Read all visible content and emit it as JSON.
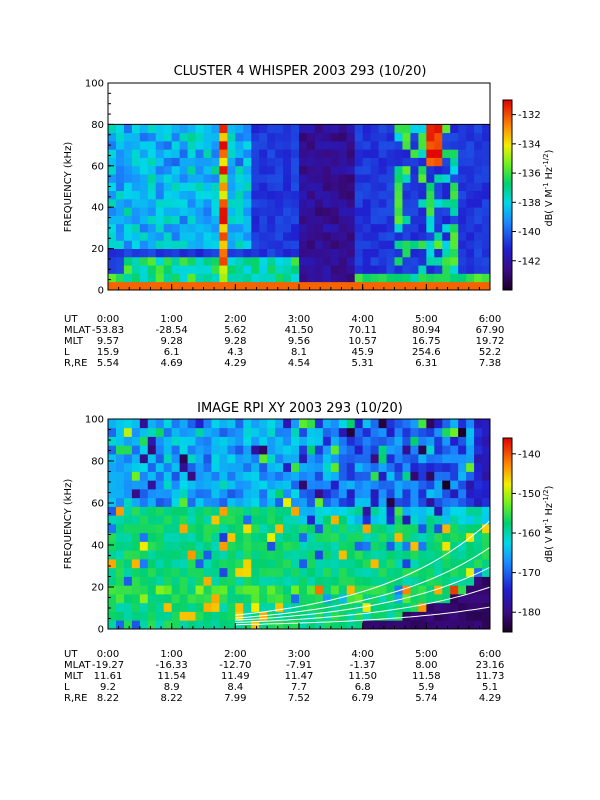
{
  "chart_data": [
    {
      "type": "heatmap",
      "title": "CLUSTER 4 WHISPER 2003 293 (10/20)",
      "ylabel": "FREQUENCY (kHz)",
      "ylim": [
        0,
        100
      ],
      "y_ticks": [
        "0",
        "20",
        "40",
        "60",
        "80",
        "100"
      ],
      "data_upper_limit_khz": 80,
      "x_ticks": [
        "0:00",
        "1:00",
        "2:00",
        "3:00",
        "4:00",
        "5:00",
        "6:00"
      ],
      "colorbar": {
        "label": "dB( V M^-1 Hz^-1/2)",
        "range": [
          -144,
          -131
        ],
        "ticks": [
          "-132",
          "-134",
          "-136",
          "-138",
          "-140",
          "-142"
        ]
      },
      "ephemeris": [
        {
          "label": "UT",
          "values": [
            "0:00",
            "1:00",
            "2:00",
            "3:00",
            "4:00",
            "5:00",
            "6:00"
          ]
        },
        {
          "label": "MLAT",
          "values": [
            "-53.83",
            "-28.54",
            "5.62",
            "41.50",
            "70.11",
            "80.94",
            "67.90"
          ]
        },
        {
          "label": "MLT",
          "values": [
            "9.57",
            "9.28",
            "9.28",
            "9.56",
            "10.57",
            "16.75",
            "19.72"
          ]
        },
        {
          "label": "L",
          "values": [
            "15.9",
            "6.1",
            "4.3",
            "8.1",
            "45.9",
            "254.6",
            "52.2"
          ]
        },
        {
          "label": "R,RE",
          "values": [
            "5.54",
            "4.69",
            "4.29",
            "4.54",
            "5.31",
            "6.31",
            "7.38"
          ]
        }
      ]
    },
    {
      "type": "heatmap",
      "title": "IMAGE RPI XY 2003 293 (10/20)",
      "ylabel": "FREQUENCY (kHz)",
      "ylim": [
        0,
        100
      ],
      "y_ticks": [
        "0",
        "20",
        "40",
        "60",
        "80",
        "100"
      ],
      "x_ticks": [
        "0:00",
        "1:00",
        "2:00",
        "3:00",
        "4:00",
        "5:00",
        "6:00"
      ],
      "colorbar": {
        "label": "dB( V M^-1 Hz^-1/2)",
        "range": [
          -185,
          -136
        ],
        "ticks": [
          "-140",
          "-150",
          "-160",
          "-170",
          "-180"
        ]
      },
      "ephemeris": [
        {
          "label": "UT",
          "values": [
            "0:00",
            "1:00",
            "2:00",
            "3:00",
            "4:00",
            "5:00",
            "6:00"
          ]
        },
        {
          "label": "MLAT",
          "values": [
            "-19.27",
            "-16.33",
            "-12.70",
            "-7.91",
            "-1.37",
            "8.00",
            "23.16"
          ]
        },
        {
          "label": "MLT",
          "values": [
            "11.61",
            "11.54",
            "11.49",
            "11.47",
            "11.50",
            "11.58",
            "11.73"
          ]
        },
        {
          "label": "L",
          "values": [
            "9.2",
            "8.9",
            "8.4",
            "7.7",
            "6.8",
            "5.9",
            "5.1"
          ]
        },
        {
          "label": "R,RE",
          "values": [
            "8.22",
            "8.22",
            "7.99",
            "7.52",
            "6.79",
            "5.74",
            "4.29"
          ]
        }
      ]
    }
  ]
}
